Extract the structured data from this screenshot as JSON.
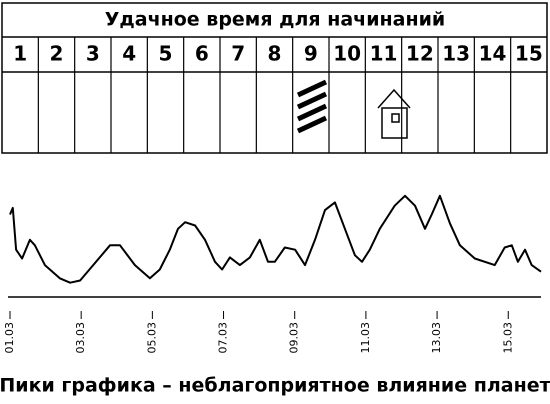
{
  "header": {
    "title": "Удачное время для начинаний",
    "days": [
      "1",
      "2",
      "3",
      "4",
      "5",
      "6",
      "7",
      "8",
      "9",
      "10",
      "11",
      "12",
      "13",
      "14",
      "15"
    ]
  },
  "chart_data": {
    "type": "line",
    "caption": "Пики графика – неблагоприятное влияние планет",
    "xlim": [
      1,
      15.92
    ],
    "ylim": [
      0,
      10
    ],
    "xticks": [
      {
        "value": 1,
        "label": "01.03"
      },
      {
        "value": 3,
        "label": "03.03"
      },
      {
        "value": 5,
        "label": "05.03"
      },
      {
        "value": 7,
        "label": "07.03"
      },
      {
        "value": 9,
        "label": "09.03"
      },
      {
        "value": 11,
        "label": "11.03"
      },
      {
        "value": 13,
        "label": "13.03"
      },
      {
        "value": 15,
        "label": "15.03"
      }
    ],
    "color": "#000000",
    "x": [
      1.0,
      1.08,
      1.17,
      1.34,
      1.56,
      1.7,
      1.98,
      2.4,
      2.69,
      2.97,
      3.39,
      3.81,
      4.09,
      4.51,
      4.93,
      5.21,
      5.49,
      5.72,
      5.92,
      6.2,
      6.48,
      6.76,
      6.96,
      7.18,
      7.46,
      7.74,
      8.02,
      8.25,
      8.44,
      8.72,
      9.01,
      9.29,
      9.57,
      9.85,
      10.13,
      10.41,
      10.69,
      10.89,
      11.11,
      11.39,
      11.81,
      12.1,
      12.38,
      12.66,
      12.85,
      13.08,
      13.36,
      13.64,
      14.06,
      14.62,
      14.9,
      15.1,
      15.27,
      15.47,
      15.66,
      15.92
    ],
    "values": [
      7.5,
      8.1,
      4.3,
      3.5,
      5.2,
      4.7,
      2.9,
      1.7,
      1.3,
      1.5,
      3.1,
      4.7,
      4.7,
      2.9,
      1.7,
      2.5,
      4.3,
      6.2,
      6.8,
      6.5,
      5.2,
      3.2,
      2.5,
      3.6,
      2.9,
      3.6,
      5.2,
      3.2,
      3.2,
      4.5,
      4.3,
      2.9,
      5.2,
      7.9,
      8.6,
      6.2,
      3.8,
      3.2,
      4.3,
      6.2,
      8.3,
      9.2,
      8.3,
      6.2,
      7.5,
      9.2,
      6.7,
      4.7,
      3.5,
      2.9,
      4.5,
      4.7,
      3.2,
      4.3,
      2.9,
      2.3
    ]
  }
}
